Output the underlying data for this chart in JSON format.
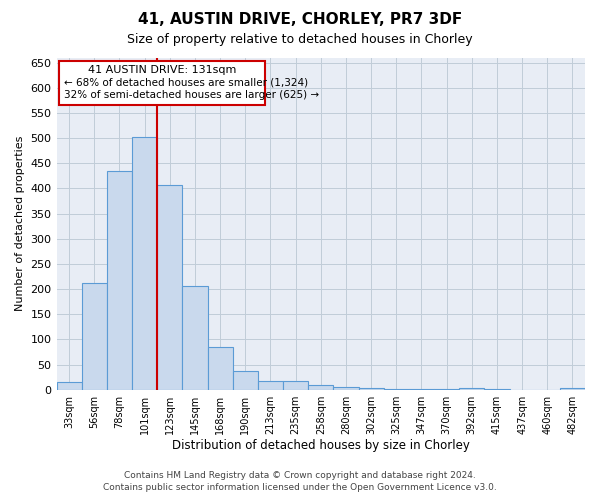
{
  "title1": "41, AUSTIN DRIVE, CHORLEY, PR7 3DF",
  "title2": "Size of property relative to detached houses in Chorley",
  "xlabel": "Distribution of detached houses by size in Chorley",
  "ylabel": "Number of detached properties",
  "categories": [
    "33sqm",
    "56sqm",
    "78sqm",
    "101sqm",
    "123sqm",
    "145sqm",
    "168sqm",
    "190sqm",
    "213sqm",
    "235sqm",
    "258sqm",
    "280sqm",
    "302sqm",
    "325sqm",
    "347sqm",
    "370sqm",
    "392sqm",
    "415sqm",
    "437sqm",
    "460sqm",
    "482sqm"
  ],
  "values": [
    15,
    212,
    435,
    503,
    407,
    207,
    84,
    38,
    18,
    18,
    10,
    5,
    4,
    2,
    1,
    1,
    4,
    1,
    0,
    0,
    4
  ],
  "bar_color": "#c9d9ed",
  "bar_edge_color": "#5b9bd5",
  "vline_x": 4.0,
  "vline_color": "#cc0000",
  "ann_text1": "41 AUSTIN DRIVE: 131sqm",
  "ann_text2": "← 68% of detached houses are smaller (1,324)",
  "ann_text3": "32% of semi-detached houses are larger (625) →",
  "ann_box_face": "#ffffff",
  "ann_box_edge": "#cc0000",
  "ylim": [
    0,
    660
  ],
  "yticks": [
    0,
    50,
    100,
    150,
    200,
    250,
    300,
    350,
    400,
    450,
    500,
    550,
    600,
    650
  ],
  "grid_color": "#c0ccd8",
  "bg_color": "#e8edf5",
  "footer1": "Contains HM Land Registry data © Crown copyright and database right 2024.",
  "footer2": "Contains public sector information licensed under the Open Government Licence v3.0."
}
